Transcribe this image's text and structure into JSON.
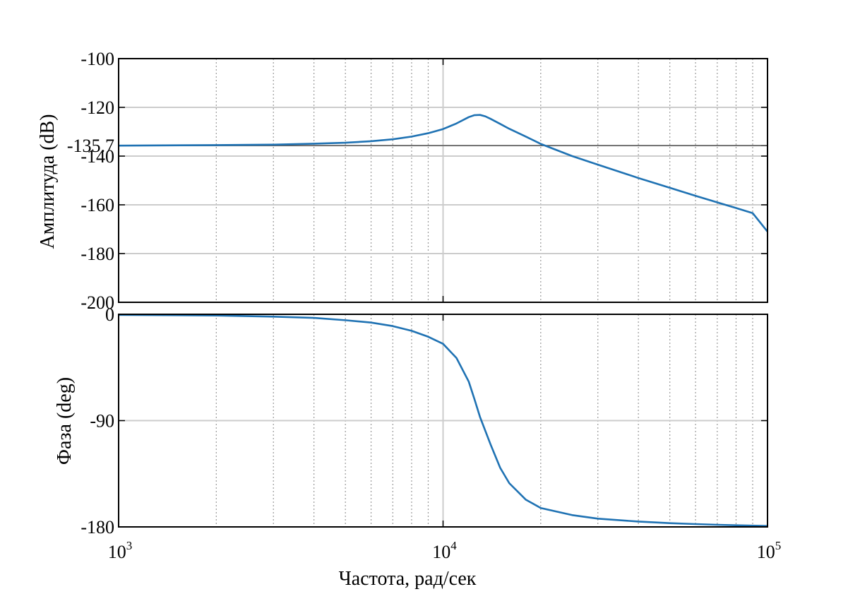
{
  "chart_data": {
    "type": "line",
    "xscale": "log",
    "xlim": [
      1000,
      100000
    ],
    "xlabel": "Частота, рад/сек",
    "x_ticks": [
      {
        "value": 1000,
        "base": "10",
        "exp": "3"
      },
      {
        "value": 10000,
        "base": "10",
        "exp": "4"
      },
      {
        "value": 100000,
        "base": "10",
        "exp": "5"
      }
    ],
    "grid": true,
    "colors": {
      "line": "#1f72b3",
      "major_grid": "#cccccc",
      "minor_grid": "#9a9a9a"
    },
    "panels": [
      {
        "name": "magnitude",
        "ylabel": "Амплитуда (dB)",
        "ylim": [
          -200,
          -100
        ],
        "y_ticks": [
          {
            "value": -100,
            "label": "-100"
          },
          {
            "value": -120,
            "label": "-120"
          },
          {
            "value": -135.7,
            "label": "-135.7"
          },
          {
            "value": -140,
            "label": "-140"
          },
          {
            "value": -160,
            "label": "-160"
          },
          {
            "value": -180,
            "label": "-180"
          },
          {
            "value": -200,
            "label": "-200"
          }
        ],
        "reference_line": -135.7,
        "points": [
          [
            1000,
            -135.7
          ],
          [
            2000,
            -135.5
          ],
          [
            3000,
            -135.3
          ],
          [
            4000,
            -134.9
          ],
          [
            5000,
            -134.5
          ],
          [
            6000,
            -133.9
          ],
          [
            7000,
            -133.1
          ],
          [
            8000,
            -132.0
          ],
          [
            9000,
            -130.6
          ],
          [
            10000,
            -128.9
          ],
          [
            11000,
            -126.6
          ],
          [
            12000,
            -124.0
          ],
          [
            12500,
            -123.2
          ],
          [
            13000,
            -123.1
          ],
          [
            13500,
            -123.7
          ],
          [
            14000,
            -124.7
          ],
          [
            15000,
            -126.8
          ],
          [
            16000,
            -128.8
          ],
          [
            18000,
            -132.0
          ],
          [
            20000,
            -135.0
          ],
          [
            25000,
            -140.0
          ],
          [
            30000,
            -143.5
          ],
          [
            40000,
            -149.0
          ],
          [
            50000,
            -153.0
          ],
          [
            60000,
            -156.3
          ],
          [
            70000,
            -159.0
          ],
          [
            80000,
            -161.3
          ],
          [
            90000,
            -163.4
          ],
          [
            100000,
            -171.0
          ]
        ]
      },
      {
        "name": "phase",
        "ylabel": "Фаза (deg)",
        "ylim": [
          -180,
          0
        ],
        "y_ticks": [
          {
            "value": 0,
            "label": "0"
          },
          {
            "value": -90,
            "label": "-90"
          },
          {
            "value": -180,
            "label": "-180"
          }
        ],
        "points": [
          [
            1000,
            -0.5
          ],
          [
            2000,
            -1.0
          ],
          [
            3000,
            -2.0
          ],
          [
            4000,
            -3.0
          ],
          [
            5000,
            -5.0
          ],
          [
            6000,
            -7.0
          ],
          [
            7000,
            -10.0
          ],
          [
            8000,
            -14.0
          ],
          [
            9000,
            -19.0
          ],
          [
            10000,
            -25.0
          ],
          [
            11000,
            -37.0
          ],
          [
            12000,
            -57.0
          ],
          [
            12500,
            -72.0
          ],
          [
            13000,
            -87.0
          ],
          [
            14000,
            -110.0
          ],
          [
            15000,
            -130.0
          ],
          [
            16000,
            -143.0
          ],
          [
            18000,
            -157.0
          ],
          [
            20000,
            -164.0
          ],
          [
            25000,
            -170.0
          ],
          [
            30000,
            -173.0
          ],
          [
            40000,
            -175.5
          ],
          [
            50000,
            -176.8
          ],
          [
            60000,
            -177.6
          ],
          [
            70000,
            -178.2
          ],
          [
            80000,
            -178.6
          ],
          [
            100000,
            -179.2
          ]
        ]
      }
    ]
  }
}
